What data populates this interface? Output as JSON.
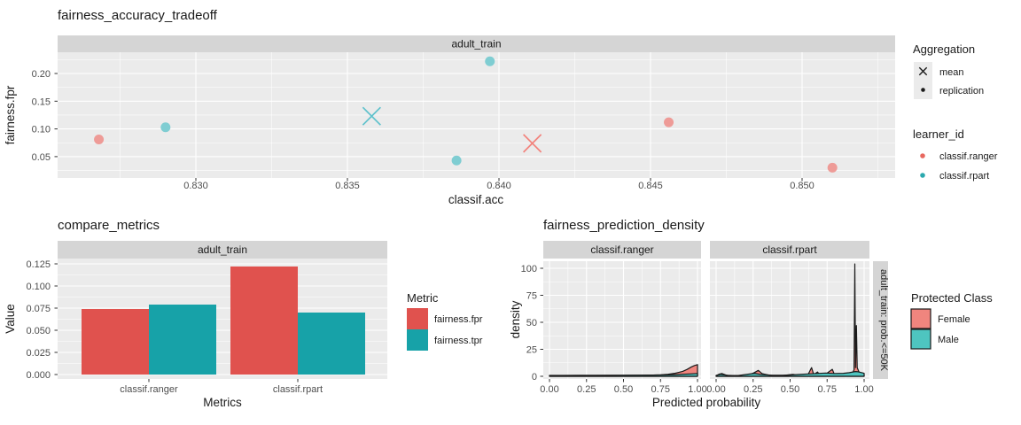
{
  "theme": {
    "page_bg": "#FFFFFF",
    "panel_bg": "#EBEBEB",
    "strip_bg": "#D5D5D5",
    "grid": "#FFFFFF",
    "axis_tick": "#333333",
    "tick_text": "#4D4D4D",
    "text": "#1A1A1A",
    "legend_key_bg": "#EBEBEB"
  },
  "chart_data": [
    {
      "type": "scatter",
      "title": "fairness_accuracy_tradeoff",
      "facet_label": "adult_train",
      "xlabel": "classif.acc",
      "ylabel": "fairness.fpr",
      "xlim": [
        0.8255,
        0.8531
      ],
      "ylim": [
        0.011,
        0.238
      ],
      "x_ticks": [
        {
          "value": 0.83,
          "label": "0.830"
        },
        {
          "value": 0.835,
          "label": "0.835"
        },
        {
          "value": 0.84,
          "label": "0.840"
        },
        {
          "value": 0.845,
          "label": "0.845"
        },
        {
          "value": 0.85,
          "label": "0.850"
        }
      ],
      "y_ticks": [
        {
          "value": 0.05,
          "label": "0.05"
        },
        {
          "value": 0.1,
          "label": "0.10"
        },
        {
          "value": 0.15,
          "label": "0.15"
        },
        {
          "value": 0.2,
          "label": "0.20"
        }
      ],
      "x_minor": [
        0.8275,
        0.8325,
        0.8375,
        0.8425,
        0.8475,
        0.8525
      ],
      "y_minor": [
        0.025,
        0.075,
        0.125,
        0.175,
        0.225
      ],
      "series": [
        {
          "name": "classif.ranger",
          "color_point": "#EE9B97",
          "color_mean": "#F2837C",
          "replications": [
            [
              0.8268,
              0.081
            ],
            [
              0.8456,
              0.112
            ],
            [
              0.851,
              0.03
            ]
          ],
          "mean": [
            0.8411,
            0.074
          ]
        },
        {
          "name": "classif.rpart",
          "color_point": "#7FCDD2",
          "color_mean": "#5FC2CC",
          "replications": [
            [
              0.829,
              0.103
            ],
            [
              0.8397,
              0.222
            ],
            [
              0.8386,
              0.043
            ]
          ],
          "mean": [
            0.8358,
            0.123
          ]
        }
      ],
      "legends": {
        "aggregation": {
          "title": "Aggregation",
          "items": [
            {
              "label": "mean",
              "marker": "x"
            },
            {
              "label": "replication",
              "marker": "dot"
            }
          ]
        },
        "learner": {
          "title": "learner_id",
          "items": [
            {
              "label": "classif.ranger",
              "color": "#E8685F"
            },
            {
              "label": "classif.rpart",
              "color": "#2BA9AE"
            }
          ]
        }
      }
    },
    {
      "type": "bar",
      "title": "compare_metrics",
      "facet_label": "adult_train",
      "xlabel": "Metrics",
      "ylabel": "Value",
      "categories": [
        "classif.ranger",
        "classif.rpart"
      ],
      "series": [
        {
          "name": "fairness.fpr",
          "color": "#E0524E",
          "values": [
            0.074,
            0.122
          ]
        },
        {
          "name": "fairness.tpr",
          "color": "#17A2A8",
          "values": [
            0.079,
            0.07
          ]
        }
      ],
      "ylim": [
        0,
        0.135
      ],
      "y_ticks": [
        {
          "value": 0.0,
          "label": "0.000"
        },
        {
          "value": 0.025,
          "label": "0.025"
        },
        {
          "value": 0.05,
          "label": "0.050"
        },
        {
          "value": 0.075,
          "label": "0.075"
        },
        {
          "value": 0.1,
          "label": "0.100"
        },
        {
          "value": 0.125,
          "label": "0.125"
        }
      ],
      "y_minor": [
        0.0125,
        0.0375,
        0.0625,
        0.0875,
        0.1125
      ],
      "legend": {
        "title": "Metric"
      }
    },
    {
      "type": "density",
      "title": "fairness_prediction_density",
      "facets": [
        "classif.ranger",
        "classif.rpart"
      ],
      "right_strip": "adult_train: prob.<=50K",
      "xlabel": "Predicted probability",
      "ylabel": "density",
      "xlim": [
        0,
        1
      ],
      "ylim": [
        0,
        108
      ],
      "x_ticks": [
        {
          "value": 0.0,
          "label": "0.00"
        },
        {
          "value": 0.25,
          "label": "0.25"
        },
        {
          "value": 0.5,
          "label": "0.50"
        },
        {
          "value": 0.75,
          "label": "0.75"
        },
        {
          "value": 1.0,
          "label": "1.00"
        }
      ],
      "y_ticks": [
        {
          "value": 0,
          "label": "0"
        },
        {
          "value": 25,
          "label": "25"
        },
        {
          "value": 50,
          "label": "50"
        },
        {
          "value": 75,
          "label": "75"
        },
        {
          "value": 100,
          "label": "100"
        }
      ],
      "x_minor": [
        0.125,
        0.375,
        0.625,
        0.875
      ],
      "y_minor": [
        12.5,
        37.5,
        62.5,
        87.5
      ],
      "outline_color": "#1A1A1A",
      "legend": {
        "title": "Protected Class",
        "items": [
          {
            "label": "Female",
            "color": "#F0857E"
          },
          {
            "label": "Male",
            "color": "#4EC5C0"
          }
        ]
      },
      "series": [
        {
          "facet": "classif.ranger",
          "class": "Female",
          "color": "#F0857E",
          "points": [
            [
              0,
              0.7
            ],
            [
              0.1,
              0.7
            ],
            [
              0.2,
              0.7
            ],
            [
              0.3,
              0.72
            ],
            [
              0.4,
              0.78
            ],
            [
              0.5,
              0.85
            ],
            [
              0.6,
              0.95
            ],
            [
              0.7,
              1.15
            ],
            [
              0.75,
              1.35
            ],
            [
              0.8,
              1.9
            ],
            [
              0.85,
              2.9
            ],
            [
              0.9,
              4.6
            ],
            [
              0.93,
              6.4
            ],
            [
              0.96,
              8.8
            ],
            [
              0.98,
              10
            ],
            [
              1,
              10.8
            ]
          ]
        },
        {
          "facet": "classif.ranger",
          "class": "Male",
          "color": "#4EC5C0",
          "points": [
            [
              0,
              0.85
            ],
            [
              0.2,
              0.9
            ],
            [
              0.4,
              0.95
            ],
            [
              0.6,
              1.05
            ],
            [
              0.7,
              1.15
            ],
            [
              0.8,
              1.35
            ],
            [
              0.85,
              1.55
            ],
            [
              0.9,
              1.85
            ],
            [
              0.95,
              2.25
            ],
            [
              1,
              2.6
            ]
          ]
        },
        {
          "facet": "classif.rpart",
          "class": "Female",
          "color": "#F0857E",
          "points": [
            [
              0,
              0.5
            ],
            [
              0.02,
              2
            ],
            [
              0.04,
              2.5
            ],
            [
              0.07,
              1
            ],
            [
              0.15,
              0.6
            ],
            [
              0.22,
              1
            ],
            [
              0.26,
              3.5
            ],
            [
              0.285,
              5.5
            ],
            [
              0.31,
              2.5
            ],
            [
              0.36,
              1
            ],
            [
              0.45,
              0.8
            ],
            [
              0.52,
              1.8
            ],
            [
              0.56,
              1
            ],
            [
              0.62,
              1.2
            ],
            [
              0.645,
              8
            ],
            [
              0.66,
              1.5
            ],
            [
              0.685,
              4
            ],
            [
              0.7,
              1.3
            ],
            [
              0.73,
              1
            ],
            [
              0.785,
              6.5
            ],
            [
              0.8,
              1.5
            ],
            [
              0.84,
              1.2
            ],
            [
              0.88,
              1.5
            ],
            [
              0.92,
              2.5
            ],
            [
              0.932,
              6
            ],
            [
              0.937,
              104
            ],
            [
              0.942,
              8
            ],
            [
              0.948,
              47
            ],
            [
              0.953,
              8
            ],
            [
              0.965,
              4
            ],
            [
              0.98,
              2.5
            ],
            [
              1,
              1.5
            ]
          ]
        },
        {
          "facet": "classif.rpart",
          "class": "Male",
          "color": "#4EC5C0",
          "points": [
            [
              0,
              0.8
            ],
            [
              0.03,
              1.8
            ],
            [
              0.08,
              0.8
            ],
            [
              0.15,
              0.7
            ],
            [
              0.26,
              2.8
            ],
            [
              0.3,
              1.8
            ],
            [
              0.38,
              0.9
            ],
            [
              0.48,
              1
            ],
            [
              0.55,
              1.6
            ],
            [
              0.62,
              2.2
            ],
            [
              0.68,
              2.6
            ],
            [
              0.74,
              3
            ],
            [
              0.8,
              2.6
            ],
            [
              0.86,
              2.8
            ],
            [
              0.9,
              3.4
            ],
            [
              0.94,
              4.4
            ],
            [
              0.96,
              4.2
            ],
            [
              1,
              2.8
            ]
          ]
        }
      ]
    }
  ]
}
